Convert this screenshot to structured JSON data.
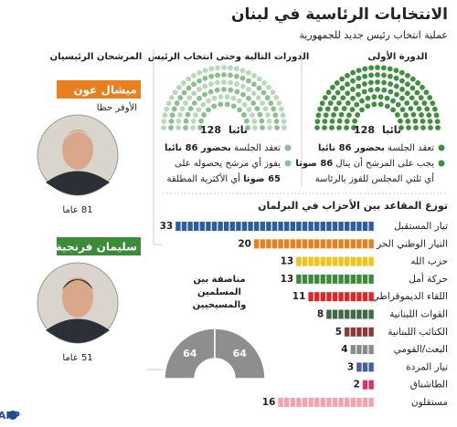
{
  "header": {
    "title": "الانتخابات الرئاسية في لبنان",
    "subtitle": "عملية انتخاب رئيس جديد للجمهورية"
  },
  "columns": {
    "first_round": "الدورة الأولى",
    "later_rounds": "الدورات التالية وحتى انتخاب الرئيس",
    "candidates": "المرشحان الرئيسيان"
  },
  "first_round": {
    "seats": 128,
    "seats_unit": "نائبا",
    "color": "#3f8f3f",
    "bullets": [
      {
        "lines": [
          [
            {
              "text": "تعقد الجلسة ",
              "bold": false
            },
            {
              "text": "بحضور 86 نائبا",
              "bold": true
            }
          ]
        ]
      },
      {
        "lines": [
          [
            {
              "text": "يجب على المرشح أن ينال ",
              "bold": false
            },
            {
              "text": "86 صوتا",
              "bold": true
            }
          ],
          [
            {
              "text": "أي ثلثي المجلس للفوز بالرئاسة",
              "bold": false
            }
          ]
        ]
      }
    ]
  },
  "later_rounds": {
    "seats": 128,
    "seats_unit": "نائبا",
    "color": "#8dbf8d",
    "bullets": [
      {
        "lines": [
          [
            {
              "text": "تعقد الجلسة ",
              "bold": false
            },
            {
              "text": "بحضور 86 نائبا",
              "bold": true
            }
          ]
        ]
      },
      {
        "lines": [
          [
            {
              "text": "يفوز أي مرشح يحصوله على",
              "bold": false
            }
          ],
          [
            {
              "text": "65 صوتا",
              "bold": true
            },
            {
              "text": " أي الأكثرية المطلقة",
              "bold": false
            }
          ]
        ]
      }
    ]
  },
  "parties": {
    "title": "توزع المقاعد بين الأحزاب في البرلمان",
    "rows": [
      {
        "name": "تيار المستقبل",
        "seats": 33,
        "color": "#2d5f9e"
      },
      {
        "name": "التيار الوطني الحر",
        "seats": 20,
        "color": "#e8801f"
      },
      {
        "name": "حزب الله",
        "seats": 13,
        "color": "#f2c318"
      },
      {
        "name": "حركة أمل",
        "seats": 13,
        "color": "#3b8b3b"
      },
      {
        "name": "اللقاء الديموقراطي",
        "seats": 11,
        "color": "#d92a2a"
      },
      {
        "name": "القوات اللبنانية",
        "seats": 8,
        "color": "#3f6a45"
      },
      {
        "name": "الكتائب اللبنانية",
        "seats": 5,
        "color": "#8b3a3a"
      },
      {
        "name": "البعث/القومي",
        "seats": 4,
        "color": "#8a8a8a"
      },
      {
        "name": "تيار المردة",
        "seats": 3,
        "color": "#4a5f9a"
      },
      {
        "name": "الطاشناق",
        "seats": 2,
        "color": "#d6336c"
      },
      {
        "name": "مستقلون",
        "seats": 16,
        "color": "#f3a3ab"
      }
    ]
  },
  "split": {
    "label": "مناصفة بين المسلمين والمسيحيين",
    "muslims": 64,
    "christians": 64,
    "color": "#8e8e8e"
  },
  "candidates": [
    {
      "name": "ميشال عون",
      "note": "الأوفر حظا",
      "age": "81 عاما",
      "color": "#e8801f"
    },
    {
      "name": "سليمان فرنجية",
      "age": "51 عاما",
      "color": "#3b8b3b"
    }
  ],
  "credit": "AFP"
}
